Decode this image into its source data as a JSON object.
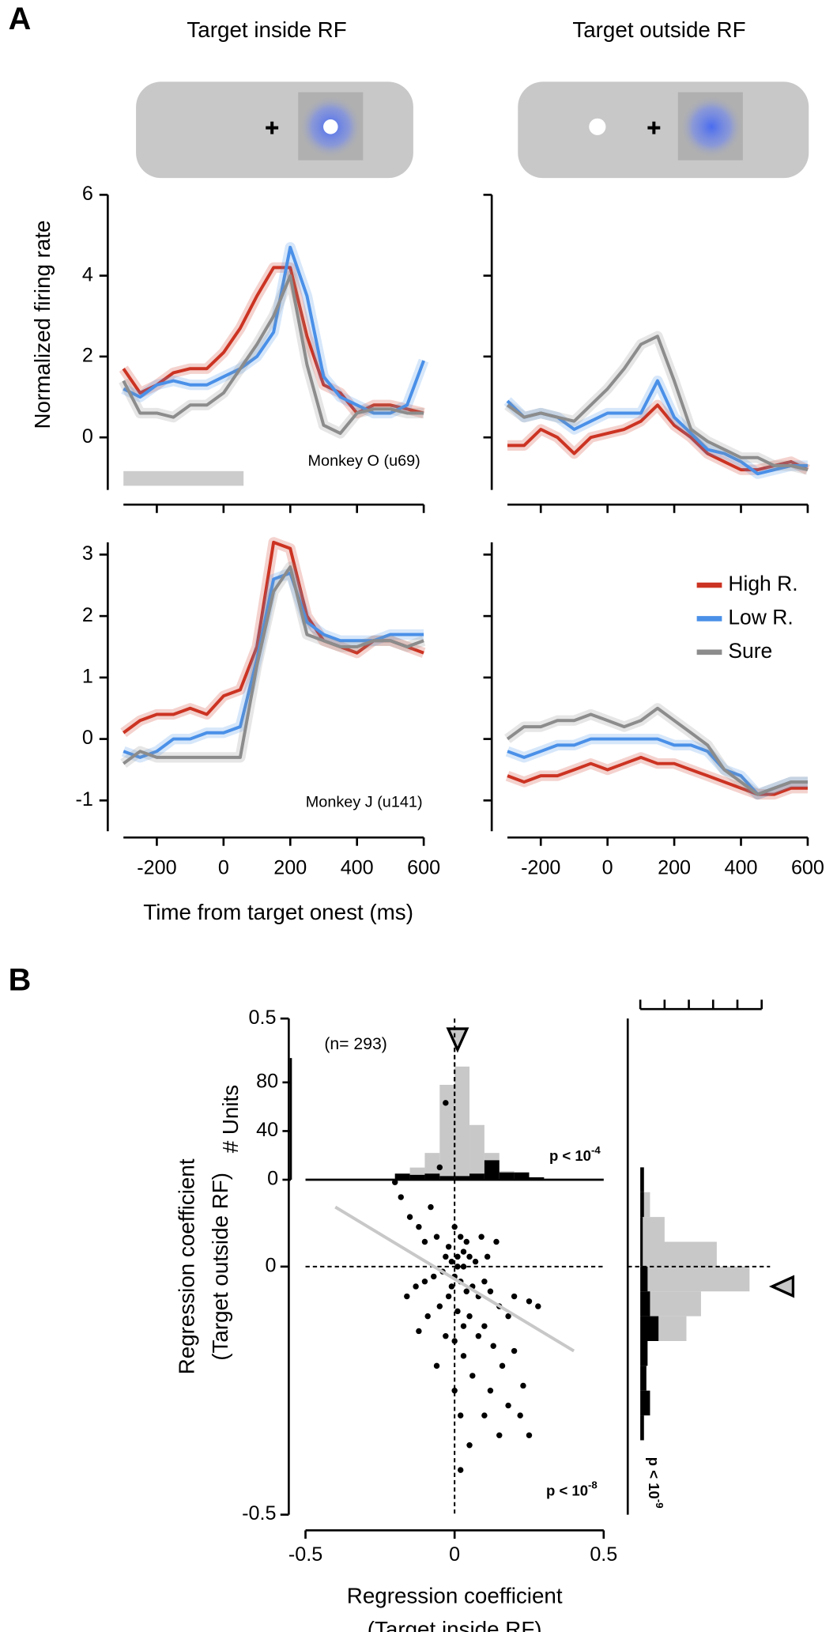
{
  "figure": {
    "panel_a": "A",
    "panel_b": "B",
    "col_titles": [
      "Target inside RF",
      "Target outside RF"
    ],
    "ylabel": "Normalized firing rate",
    "xlabel": "Time from target onest (ms)"
  },
  "chart_data": [
    {
      "type": "line",
      "annotation": "Monkey O (u69)",
      "x": [
        -300,
        -250,
        -200,
        -150,
        -100,
        -50,
        0,
        50,
        100,
        150,
        200,
        250,
        300,
        350,
        400,
        450,
        500,
        550,
        600
      ],
      "xlim": [
        -300,
        600
      ],
      "xticks": [
        -200,
        0,
        200,
        400,
        600
      ],
      "ylim": [
        -1.3,
        6
      ],
      "yticks": [
        0,
        2,
        4,
        6
      ],
      "window": [
        -300,
        60
      ],
      "window_color": "#cccccc",
      "series": [
        {
          "color": "#cc3322",
          "values": [
            1.7,
            1.1,
            1.3,
            1.6,
            1.7,
            1.7,
            2.1,
            2.7,
            3.5,
            4.2,
            4.2,
            2.5,
            1.3,
            1.1,
            0.6,
            0.8,
            0.8,
            0.7,
            0.6
          ]
        },
        {
          "color": "#4a90e8",
          "values": [
            1.2,
            1.0,
            1.3,
            1.4,
            1.3,
            1.3,
            1.5,
            1.7,
            2.0,
            2.6,
            4.7,
            3.5,
            1.5,
            1.0,
            0.8,
            0.6,
            0.6,
            0.8,
            1.9
          ]
        },
        {
          "color": "#8c8c8c",
          "values": [
            1.4,
            0.6,
            0.6,
            0.5,
            0.8,
            0.8,
            1.1,
            1.7,
            2.3,
            3.0,
            4.0,
            1.8,
            0.3,
            0.1,
            0.6,
            0.7,
            0.7,
            0.6,
            0.6
          ]
        }
      ]
    },
    {
      "type": "line",
      "x": [
        -300,
        -250,
        -200,
        -150,
        -100,
        -50,
        0,
        50,
        100,
        150,
        200,
        250,
        300,
        350,
        400,
        450,
        500,
        550,
        600
      ],
      "xlim": [
        -300,
        600
      ],
      "xticks": [
        -200,
        0,
        200,
        400,
        600
      ],
      "ylim": [
        -1.3,
        6
      ],
      "yticks": [
        0,
        2,
        4,
        6
      ],
      "series": [
        {
          "color": "#cc3322",
          "values": [
            -0.2,
            -0.2,
            0.2,
            0.0,
            -0.4,
            0.0,
            0.1,
            0.2,
            0.4,
            0.8,
            0.3,
            0.0,
            -0.4,
            -0.6,
            -0.8,
            -0.8,
            -0.7,
            -0.6,
            -0.8
          ]
        },
        {
          "color": "#4a90e8",
          "values": [
            0.9,
            0.5,
            0.6,
            0.5,
            0.2,
            0.4,
            0.6,
            0.6,
            0.6,
            1.4,
            0.5,
            0.1,
            -0.3,
            -0.4,
            -0.6,
            -0.9,
            -0.8,
            -0.7,
            -0.7
          ]
        },
        {
          "color": "#8c8c8c",
          "values": [
            0.8,
            0.5,
            0.6,
            0.5,
            0.4,
            0.8,
            1.2,
            1.7,
            2.3,
            2.5,
            1.4,
            0.2,
            -0.1,
            -0.3,
            -0.5,
            -0.5,
            -0.7,
            -0.7,
            -0.8
          ]
        }
      ]
    },
    {
      "type": "line",
      "annotation": "Monkey J (u141)",
      "x": [
        -300,
        -250,
        -200,
        -150,
        -100,
        -50,
        0,
        50,
        100,
        150,
        200,
        250,
        300,
        350,
        400,
        450,
        500,
        550,
        600
      ],
      "xlim": [
        -300,
        600
      ],
      "xticks": [
        -200,
        0,
        200,
        400,
        600
      ],
      "ylim": [
        -1.5,
        3.2
      ],
      "yticks": [
        -1,
        0,
        1,
        2,
        3
      ],
      "series": [
        {
          "color": "#cc3322",
          "values": [
            0.1,
            0.3,
            0.4,
            0.4,
            0.5,
            0.4,
            0.7,
            0.8,
            1.5,
            3.2,
            3.1,
            2.0,
            1.6,
            1.5,
            1.4,
            1.6,
            1.6,
            1.5,
            1.4
          ]
        },
        {
          "color": "#4a90e8",
          "values": [
            -0.2,
            -0.3,
            -0.2,
            0.0,
            0.0,
            0.1,
            0.1,
            0.2,
            1.3,
            2.6,
            2.7,
            1.9,
            1.7,
            1.6,
            1.6,
            1.6,
            1.7,
            1.7,
            1.7
          ]
        },
        {
          "color": "#8c8c8c",
          "values": [
            -0.4,
            -0.2,
            -0.3,
            -0.3,
            -0.3,
            -0.3,
            -0.3,
            -0.3,
            1.2,
            2.4,
            2.8,
            1.7,
            1.6,
            1.5,
            1.5,
            1.6,
            1.6,
            1.5,
            1.6
          ]
        }
      ]
    },
    {
      "type": "line",
      "legend": true,
      "x": [
        -300,
        -250,
        -200,
        -150,
        -100,
        -50,
        0,
        50,
        100,
        150,
        200,
        250,
        300,
        350,
        400,
        450,
        500,
        550,
        600
      ],
      "xlim": [
        -300,
        600
      ],
      "xticks": [
        -200,
        0,
        200,
        400,
        600
      ],
      "ylim": [
        -1.5,
        3.2
      ],
      "yticks": [
        -1,
        0,
        1,
        2,
        3
      ],
      "series": [
        {
          "name": "High R.",
          "color": "#cc3322",
          "values": [
            -0.6,
            -0.7,
            -0.6,
            -0.6,
            -0.5,
            -0.4,
            -0.5,
            -0.4,
            -0.3,
            -0.4,
            -0.4,
            -0.5,
            -0.6,
            -0.7,
            -0.8,
            -0.9,
            -0.9,
            -0.8,
            -0.8
          ]
        },
        {
          "name": "Low R.",
          "color": "#4a90e8",
          "values": [
            -0.2,
            -0.3,
            -0.2,
            -0.1,
            -0.1,
            0.0,
            0.0,
            0.0,
            0.0,
            0.0,
            -0.1,
            -0.1,
            -0.2,
            -0.5,
            -0.6,
            -0.9,
            -0.8,
            -0.7,
            -0.7
          ]
        },
        {
          "name": "Sure",
          "color": "#8c8c8c",
          "values": [
            0.0,
            0.2,
            0.2,
            0.3,
            0.3,
            0.4,
            0.3,
            0.2,
            0.3,
            0.5,
            0.3,
            0.1,
            -0.1,
            -0.5,
            -0.7,
            -0.9,
            -0.8,
            -0.7,
            -0.7
          ]
        }
      ]
    },
    {
      "type": "histogram",
      "ylabel": "# Units",
      "bins": [
        -0.2,
        -0.15,
        -0.1,
        -0.05,
        0,
        0.05,
        0.1,
        0.15,
        0.2,
        0.25,
        0.3
      ],
      "xlim": [
        -0.5,
        0.5
      ],
      "ylim": [
        0,
        100
      ],
      "yticks": [
        0,
        40,
        80
      ],
      "mean": 0.01,
      "p_text": "p < 10",
      "p_exp": "-4",
      "series": [
        {
          "color": "#c8c8c8",
          "values": [
            5,
            10,
            22,
            78,
            93,
            45,
            22,
            7,
            6,
            2
          ]
        },
        {
          "color": "#000000",
          "values": [
            5,
            4,
            5,
            3,
            3,
            5,
            16,
            6,
            6,
            2
          ]
        }
      ]
    },
    {
      "type": "scatter",
      "annotation": "(n= 293)",
      "p_text": "p < 10",
      "p_exp": "-8",
      "color": "#000000",
      "xlabel": [
        "Regression coefficient",
        "(Target inside RF)"
      ],
      "ylabel": [
        "Regression coefficient",
        "(Target outside RF)"
      ],
      "xlim": [
        -0.5,
        0.5
      ],
      "ylim": [
        -0.5,
        0.5
      ],
      "xticks": [
        -0.5,
        0,
        0.5
      ],
      "yticks": [
        -0.5,
        0,
        0.5
      ],
      "fit": {
        "x": [
          -0.4,
          0.4
        ],
        "y": [
          0.12,
          -0.17
        ],
        "color": "#c8c8c8"
      },
      "x": [
        -0.18,
        -0.2,
        -0.15,
        -0.12,
        -0.1,
        -0.08,
        -0.05,
        -0.03,
        -0.06,
        -0.02,
        0.0,
        0.02,
        0.04,
        0.01,
        -0.01,
        0.03,
        0.05,
        0.07,
        -0.04,
        -0.07,
        -0.1,
        -0.13,
        -0.16,
        0.0,
        0.02,
        0.04,
        0.06,
        0.08,
        0.1,
        0.12,
        0.15,
        0.18,
        0.2,
        0.25,
        0.28,
        -0.02,
        -0.05,
        -0.09,
        0.01,
        0.03,
        0.05,
        0.08,
        0.1,
        0.13,
        0.16,
        0.2,
        0.23,
        0.18,
        0.22,
        0.25,
        0.12,
        0.06,
        0.03,
        0.0,
        -0.03,
        0.02,
        0.05,
        0.1,
        0.15,
        0.0,
        0.02,
        -0.12,
        -0.06,
        0.09,
        0.11,
        0.14,
        -0.01,
        0.01,
        0.03,
        -0.03
      ],
      "y": [
        0.14,
        0.17,
        0.1,
        0.08,
        0.05,
        0.12,
        0.2,
        0.33,
        0.06,
        0.04,
        0.08,
        0.06,
        0.05,
        0.02,
        0.01,
        0.0,
        0.02,
        0.01,
        -0.01,
        -0.02,
        -0.03,
        -0.04,
        -0.06,
        -0.02,
        -0.03,
        -0.05,
        -0.04,
        -0.06,
        -0.03,
        -0.05,
        -0.08,
        -0.1,
        -0.06,
        -0.07,
        -0.08,
        -0.06,
        -0.08,
        -0.1,
        -0.09,
        -0.12,
        -0.1,
        -0.14,
        -0.12,
        -0.16,
        -0.2,
        -0.17,
        -0.24,
        -0.28,
        -0.3,
        -0.34,
        -0.25,
        -0.22,
        -0.18,
        -0.15,
        -0.14,
        -0.3,
        -0.36,
        -0.3,
        -0.34,
        -0.25,
        -0.41,
        -0.13,
        -0.2,
        0.06,
        0.02,
        0.05,
        -0.04,
        0.0,
        0.03,
        0.02
      ]
    },
    {
      "type": "histogram",
      "orientation": "horizontal",
      "bins": [
        -0.35,
        -0.3,
        -0.25,
        -0.2,
        -0.15,
        -0.1,
        -0.05,
        0,
        0.05,
        0.1,
        0.15,
        0.2
      ],
      "ylim": [
        -0.5,
        0.5
      ],
      "xlim": [
        0,
        100
      ],
      "xticks": [
        0,
        20,
        40,
        60,
        80,
        100
      ],
      "mean": -0.04,
      "p_text": "p < 10",
      "p_exp": "-9",
      "series": [
        {
          "color": "#c8c8c8",
          "values": [
            3,
            8,
            4,
            4,
            38,
            50,
            90,
            63,
            20,
            8,
            3
          ]
        },
        {
          "color": "#000000",
          "values": [
            3,
            8,
            5,
            6,
            15,
            8,
            6,
            2,
            2,
            3,
            3
          ]
        }
      ]
    }
  ]
}
